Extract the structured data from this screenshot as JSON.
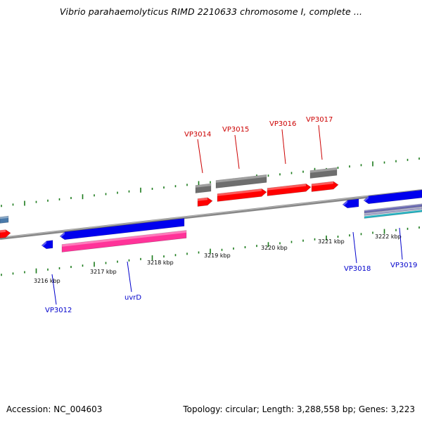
{
  "title": "Vibrio parahaemolyticus RIMD 2210633 chromosome I, complete ...",
  "footer": {
    "accession": "Accession: NC_004603",
    "summary": "Topology: circular; Length: 3,288,558 bp; Genes: 3,223"
  },
  "colors": {
    "backbone": "#888888",
    "tick": "#1a7a1a",
    "gene_plus": "#ff0000",
    "gene_minus": "#0000ee",
    "cds_gray": "#6e6e6e",
    "pink": "#ff3399",
    "label_plus": "#cc0000",
    "label_minus": "#0000cc"
  },
  "axis": {
    "unit": "kbp",
    "tick_labels": [
      "3216 kbp",
      "3217 kbp",
      "3218 kbp",
      "3219 kbp",
      "3220 kbp",
      "3221 kbp",
      "3222 kbp"
    ]
  },
  "genes": {
    "forward": [
      "VP3014",
      "VP3015",
      "VP3016",
      "VP3017"
    ],
    "reverse": [
      "VP3012",
      "uvrD",
      "VP3018",
      "VP3019"
    ]
  }
}
